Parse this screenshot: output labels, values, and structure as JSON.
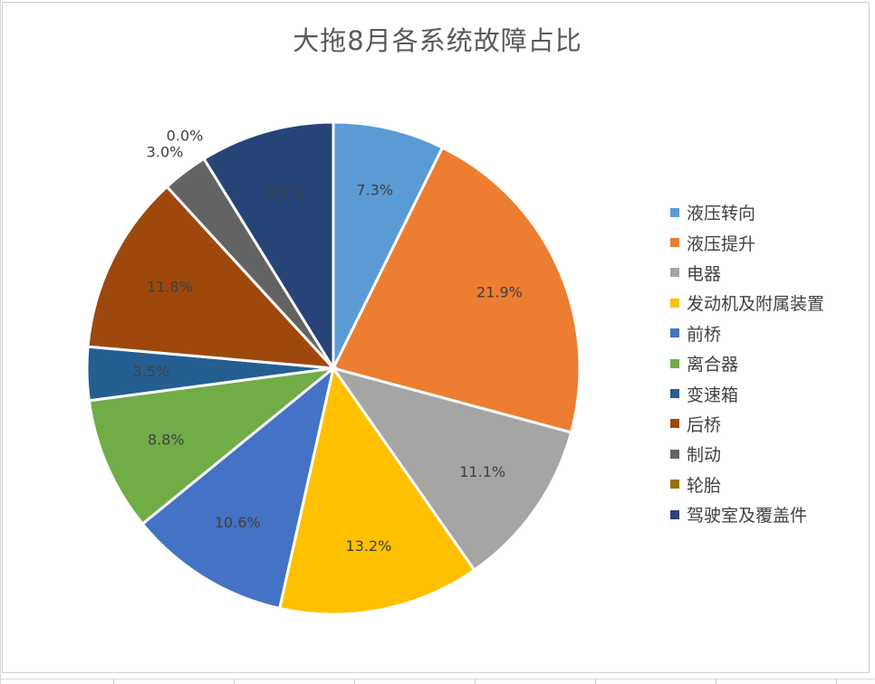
{
  "chart_data": {
    "type": "pie",
    "title": "大拖8月各系统故障占比",
    "legend_position": "right",
    "slices": [
      {
        "label": "液压转向",
        "value": 7.3,
        "display": "7.3%",
        "color": "#5B9BD5",
        "label_color": "#404040"
      },
      {
        "label": "液压提升",
        "value": 21.9,
        "display": "21.9%",
        "color": "#ED7D31",
        "label_color": "#404040"
      },
      {
        "label": "电器",
        "value": 11.1,
        "display": "11.1%",
        "color": "#A5A5A5",
        "label_color": "#404040"
      },
      {
        "label": "发动机及附属装置",
        "value": 13.2,
        "display": "13.2%",
        "color": "#FFC000",
        "label_color": "#404040"
      },
      {
        "label": "前桥",
        "value": 10.6,
        "display": "10.6%",
        "color": "#4472C4",
        "label_color": "#404040"
      },
      {
        "label": "离合器",
        "value": 8.8,
        "display": "8.8%",
        "color": "#70AD47",
        "label_color": "#404040"
      },
      {
        "label": "变速箱",
        "value": 3.5,
        "display": "3.5%",
        "color": "#255E91",
        "label_color": "#404040"
      },
      {
        "label": "后桥",
        "value": 11.8,
        "display": "11.8%",
        "color": "#9E480E",
        "label_color": "#404040"
      },
      {
        "label": "制动",
        "value": 3.0,
        "display": "3.0%",
        "color": "#636363",
        "label_color": "#404040"
      },
      {
        "label": "轮胎",
        "value": 0.0,
        "display": "0.0%",
        "color": "#997300",
        "label_color": "#404040"
      },
      {
        "label": "驾驶室及覆盖件",
        "value": 8.8,
        "display": "8.8%",
        "color": "#264478",
        "label_color": "#404040"
      }
    ]
  }
}
